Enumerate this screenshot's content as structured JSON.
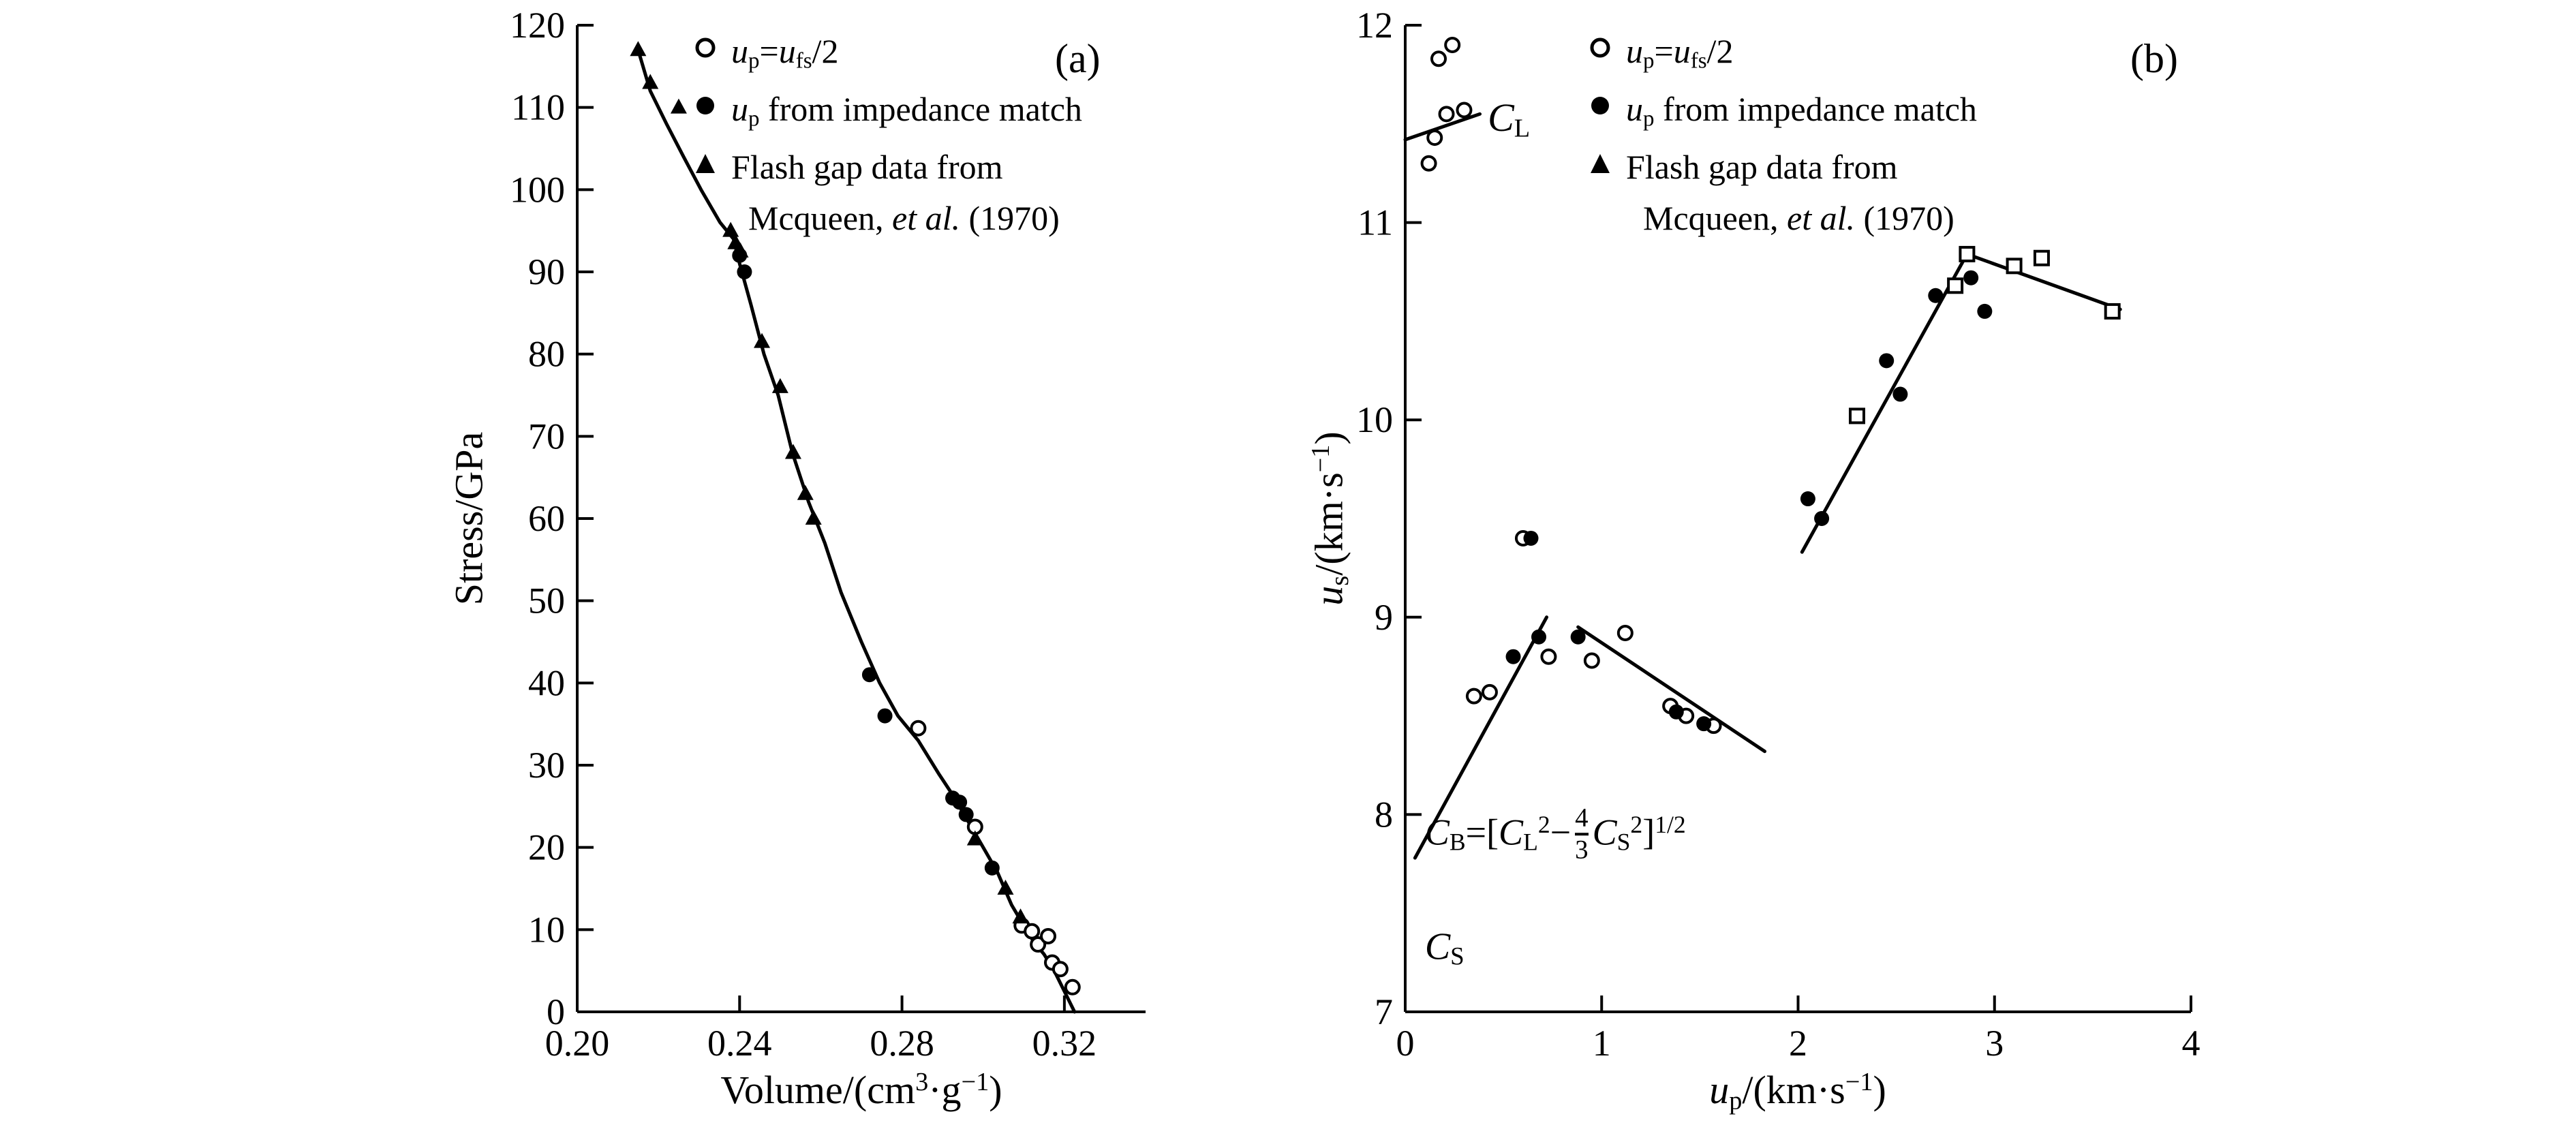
{
  "figure": {
    "background": "#ffffff",
    "text_color": "#000000",
    "line_color": "#000000"
  },
  "chart_data": [
    {
      "panel_label": "(a)",
      "type": "scatter",
      "grid": false,
      "xlim": [
        0.2,
        0.34
      ],
      "ylim": [
        0,
        120
      ],
      "xlabel_text": "Volume/(cm3·g−1)",
      "ylabel_text": "Stress/GPa",
      "xlabel_runs": [
        {
          "t": "Volume/(cm"
        },
        {
          "t": "3",
          "sup": true
        },
        {
          "t": "·g"
        },
        {
          "t": "−1",
          "sup": true
        },
        {
          "t": ")"
        }
      ],
      "ylabel_runs": [
        {
          "t": "Stress/GPa"
        }
      ],
      "xticks": [
        {
          "v": 0.2,
          "label": "0.20"
        },
        {
          "v": 0.24,
          "label": "0.24"
        },
        {
          "v": 0.28,
          "label": "0.28"
        },
        {
          "v": 0.32,
          "label": "0.32"
        }
      ],
      "yticks": [
        {
          "v": 0,
          "label": "0"
        },
        {
          "v": 10,
          "label": "10"
        },
        {
          "v": 20,
          "label": "20"
        },
        {
          "v": 30,
          "label": "30"
        },
        {
          "v": 40,
          "label": "40"
        },
        {
          "v": 50,
          "label": "50"
        },
        {
          "v": 60,
          "label": "60"
        },
        {
          "v": 70,
          "label": "70"
        },
        {
          "v": 80,
          "label": "80"
        },
        {
          "v": 90,
          "label": "90"
        },
        {
          "v": 100,
          "label": "100"
        },
        {
          "v": 110,
          "label": "110"
        },
        {
          "v": 120,
          "label": "120"
        }
      ],
      "legend": {
        "position": "upper-center",
        "items": [
          {
            "marker": "open-circle",
            "label_text": "up=ufs/2",
            "label_runs": [
              {
                "t": "u",
                "i": true
              },
              {
                "t": "p",
                "sub": true
              },
              {
                "t": "="
              },
              {
                "t": "u",
                "i": true
              },
              {
                "t": "fs",
                "sub": true
              },
              {
                "t": "/2"
              }
            ]
          },
          {
            "marker": "filled-circle",
            "label_text": "up from impedance match",
            "label_runs": [
              {
                "t": "u",
                "i": true
              },
              {
                "t": "p",
                "sub": true
              },
              {
                "t": " from impedance match"
              }
            ]
          },
          {
            "marker": "filled-triangle",
            "label_text": "Flash gap data from Mcqueen, et al. (1970)",
            "label_runs": [
              {
                "t": "Flash gap data from"
              },
              {
                "br": true
              },
              {
                "t": "  Mcqueen, "
              },
              {
                "t": "et al.",
                "i": true
              },
              {
                "t": " (1970)"
              }
            ]
          }
        ]
      },
      "series": [
        {
          "name": "hugoniot_curve",
          "type": "line",
          "points": [
            [
              0.215,
              117
            ],
            [
              0.218,
              112
            ],
            [
              0.222,
              108
            ],
            [
              0.2262,
              104
            ],
            [
              0.2305,
              100
            ],
            [
              0.2352,
              96
            ],
            [
              0.2385,
              94
            ],
            [
              0.24,
              91
            ],
            [
              0.2428,
              86
            ],
            [
              0.246,
              80
            ],
            [
              0.2495,
              75
            ],
            [
              0.253,
              68
            ],
            [
              0.257,
              62
            ],
            [
              0.261,
              57
            ],
            [
              0.265,
              51
            ],
            [
              0.27,
              45
            ],
            [
              0.2745,
              40
            ],
            [
              0.279,
              36
            ],
            [
              0.284,
              33
            ],
            [
              0.289,
              29
            ],
            [
              0.293,
              26
            ],
            [
              0.2965,
              23
            ],
            [
              0.3,
              20
            ],
            [
              0.3035,
              17
            ],
            [
              0.307,
              13
            ],
            [
              0.31,
              10.5
            ],
            [
              0.3125,
              8.5
            ],
            [
              0.315,
              7
            ],
            [
              0.3175,
              5
            ],
            [
              0.3195,
              3
            ],
            [
              0.3215,
              1
            ],
            [
              0.3225,
              0
            ]
          ]
        },
        {
          "name": "up_half_ufs",
          "marker": "open-circle",
          "points": [
            [
              0.284,
              34.5
            ],
            [
              0.298,
              22.5
            ],
            [
              0.3095,
              10.5
            ],
            [
              0.312,
              9.8
            ],
            [
              0.3135,
              8.2
            ],
            [
              0.316,
              9.2
            ],
            [
              0.317,
              6.0
            ],
            [
              0.319,
              5.2
            ],
            [
              0.322,
              3.0
            ]
          ]
        },
        {
          "name": "up_impedance_match",
          "marker": "filled-circle",
          "points": [
            [
              0.24,
              92
            ],
            [
              0.2412,
              90
            ],
            [
              0.272,
              41
            ],
            [
              0.2758,
              36
            ],
            [
              0.2925,
              26
            ],
            [
              0.2942,
              25.5
            ],
            [
              0.2958,
              24
            ],
            [
              0.3022,
              17.5
            ]
          ]
        },
        {
          "name": "flash_gap_mcqueen_1970",
          "marker": "filled-triangle",
          "points": [
            [
              0.215,
              117
            ],
            [
              0.218,
              113
            ],
            [
              0.225,
              110
            ],
            [
              0.2378,
              95
            ],
            [
              0.239,
              93.5
            ],
            [
              0.2402,
              92.5
            ],
            [
              0.2455,
              81.5
            ],
            [
              0.25,
              76
            ],
            [
              0.2532,
              68
            ],
            [
              0.2562,
              63
            ],
            [
              0.2582,
              60
            ],
            [
              0.298,
              21
            ],
            [
              0.3055,
              15
            ],
            [
              0.3092,
              11.5
            ]
          ]
        }
      ],
      "annotations": []
    },
    {
      "panel_label": "(b)",
      "type": "scatter",
      "grid": false,
      "xlim": [
        0,
        4
      ],
      "ylim": [
        7,
        12
      ],
      "xlabel_text": "up/(km·s−1)",
      "ylabel_text": "us/(km·s−1)",
      "xlabel_runs": [
        {
          "t": "u",
          "i": true
        },
        {
          "t": "p",
          "sub": true
        },
        {
          "t": "/(km·s"
        },
        {
          "t": "−1",
          "sup": true
        },
        {
          "t": ")"
        }
      ],
      "ylabel_runs": [
        {
          "t": "u",
          "i": true
        },
        {
          "t": "s",
          "sub": true
        },
        {
          "t": "/(km·s"
        },
        {
          "t": "−1",
          "sup": true
        },
        {
          "t": ")"
        }
      ],
      "xticks": [
        {
          "v": 0,
          "label": "0"
        },
        {
          "v": 1,
          "label": "1"
        },
        {
          "v": 2,
          "label": "2"
        },
        {
          "v": 3,
          "label": "3"
        },
        {
          "v": 4,
          "label": "4"
        }
      ],
      "yticks": [
        {
          "v": 7,
          "label": "7"
        },
        {
          "v": 8,
          "label": "8"
        },
        {
          "v": 9,
          "label": "9"
        },
        {
          "v": 10,
          "label": "10"
        },
        {
          "v": 11,
          "label": "11"
        },
        {
          "v": 12,
          "label": "12"
        }
      ],
      "legend": {
        "position": "upper-center",
        "items": [
          {
            "marker": "open-circle",
            "label_text": "up=ufs/2",
            "label_runs": [
              {
                "t": "u",
                "i": true
              },
              {
                "t": "p",
                "sub": true
              },
              {
                "t": "="
              },
              {
                "t": "u",
                "i": true
              },
              {
                "t": "fs",
                "sub": true
              },
              {
                "t": "/2"
              }
            ]
          },
          {
            "marker": "filled-circle",
            "label_text": "up from impedance match",
            "label_runs": [
              {
                "t": "u",
                "i": true
              },
              {
                "t": "p",
                "sub": true
              },
              {
                "t": " from impedance match"
              }
            ]
          },
          {
            "marker": "filled-triangle",
            "label_text": "Flash gap data from Mcqueen, et al. (1970)",
            "label_runs": [
              {
                "t": "Flash gap data from"
              },
              {
                "br": true
              },
              {
                "t": "  Mcqueen, "
              },
              {
                "t": "et al.",
                "i": true
              },
              {
                "t": " (1970)"
              }
            ]
          }
        ]
      },
      "series": [
        {
          "name": "cl_longitudinal_line",
          "type": "line",
          "points": [
            [
              0.0,
              11.42
            ],
            [
              0.38,
              11.55
            ]
          ]
        },
        {
          "name": "cb_rising_line",
          "type": "line",
          "points": [
            [
              0.05,
              7.78
            ],
            [
              0.72,
              9.0
            ]
          ]
        },
        {
          "name": "lower_falling_line",
          "type": "line",
          "points": [
            [
              0.88,
              8.95
            ],
            [
              1.83,
              8.32
            ]
          ]
        },
        {
          "name": "upper_rising_line",
          "type": "line",
          "points": [
            [
              2.02,
              9.33
            ],
            [
              2.86,
              10.84
            ]
          ]
        },
        {
          "name": "upper_falling_line",
          "type": "line",
          "points": [
            [
              2.86,
              10.84
            ],
            [
              3.64,
              10.56
            ]
          ]
        },
        {
          "name": "up_half_ufs",
          "marker": "open-circle",
          "points": [
            [
              0.12,
              11.3
            ],
            [
              0.17,
              11.83
            ],
            [
              0.24,
              11.9
            ],
            [
              0.21,
              11.55
            ],
            [
              0.15,
              11.43
            ],
            [
              0.3,
              11.57
            ],
            [
              0.35,
              8.6
            ],
            [
              0.43,
              8.62
            ],
            [
              0.6,
              9.4
            ],
            [
              0.73,
              8.8
            ],
            [
              0.95,
              8.78
            ],
            [
              1.12,
              8.92
            ],
            [
              1.35,
              8.55
            ],
            [
              1.43,
              8.5
            ],
            [
              1.57,
              8.45
            ]
          ]
        },
        {
          "name": "up_impedance_match",
          "marker": "filled-circle",
          "points": [
            [
              0.64,
              9.4
            ],
            [
              0.55,
              8.8
            ],
            [
              0.68,
              8.9
            ],
            [
              0.88,
              8.9
            ],
            [
              1.38,
              8.52
            ],
            [
              1.52,
              8.46
            ],
            [
              2.05,
              9.6
            ],
            [
              2.12,
              9.5
            ],
            [
              2.45,
              10.3
            ],
            [
              2.52,
              10.13
            ],
            [
              2.7,
              10.63
            ],
            [
              2.88,
              10.72
            ],
            [
              2.95,
              10.55
            ]
          ]
        },
        {
          "name": "open_square_data",
          "marker": "open-square",
          "points": [
            [
              2.3,
              10.02
            ],
            [
              2.8,
              10.68
            ],
            [
              2.86,
              10.84
            ],
            [
              3.1,
              10.78
            ],
            [
              3.24,
              10.82
            ],
            [
              3.6,
              10.55
            ]
          ]
        }
      ],
      "annotations": [
        {
          "name": "cl-label",
          "x": 0.42,
          "y": 11.52,
          "size": 58,
          "runs": [
            {
              "t": "C",
              "i": true
            },
            {
              "t": "L",
              "sub": true
            }
          ]
        },
        {
          "name": "bulk-sound-speed-equation",
          "x": 0.1,
          "y": 7.9,
          "size": 54,
          "runs": [
            {
              "t": "C",
              "i": true
            },
            {
              "t": "B",
              "sub": true
            },
            {
              "t": "=["
            },
            {
              "t": "C",
              "i": true
            },
            {
              "t": "L",
              "sub": true
            },
            {
              "t": "2",
              "sup": true
            },
            {
              "t": "−"
            },
            {
              "frac": [
                "4",
                "3"
              ]
            },
            {
              "t": "C",
              "i": true
            },
            {
              "t": "S",
              "sub": true
            },
            {
              "t": "2",
              "sup": true
            },
            {
              "t": "]"
            },
            {
              "t": "1/2",
              "sup": true
            }
          ]
        },
        {
          "name": "cs-label",
          "x": 0.1,
          "y": 7.32,
          "size": 56,
          "runs": [
            {
              "t": "C",
              "i": true
            },
            {
              "t": "S",
              "sub": true
            }
          ]
        }
      ]
    }
  ]
}
